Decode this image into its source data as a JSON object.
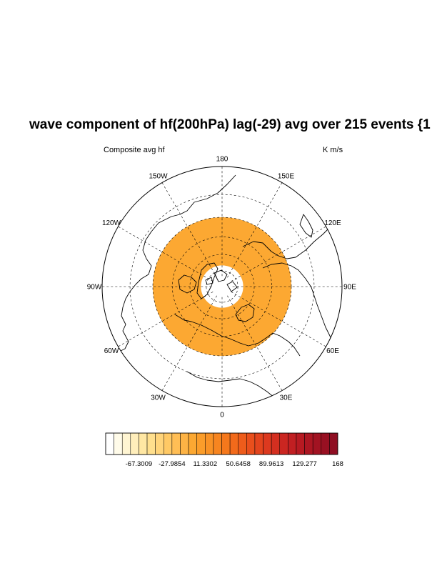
{
  "title": "wave component of hf(200hPa) lag(-29) avg over 215 events {1",
  "left_string": "Composite avg hf",
  "right_string": "K m/s",
  "map": {
    "projection": "north-polar-stereographic",
    "field_color": "#fca832",
    "annulus_lat_range": [
      30,
      70
    ],
    "outer_lat": 0,
    "parallels": [
      15,
      30,
      45,
      60,
      75
    ],
    "meridian_labels": [
      {
        "lon": 180,
        "text": "180"
      },
      {
        "lon": -150,
        "text": "150W"
      },
      {
        "lon": 150,
        "text": "150E"
      },
      {
        "lon": -120,
        "text": "120W"
      },
      {
        "lon": 120,
        "text": "120E"
      },
      {
        "lon": -90,
        "text": "90W"
      },
      {
        "lon": 90,
        "text": "90E"
      },
      {
        "lon": -60,
        "text": "60W"
      },
      {
        "lon": 60,
        "text": "60E"
      },
      {
        "lon": -30,
        "text": "30W"
      },
      {
        "lon": 30,
        "text": "30E"
      },
      {
        "lon": 0,
        "text": "0"
      }
    ]
  },
  "colorbar": {
    "colors": [
      "#ffffff",
      "#fffbe9",
      "#fff5d2",
      "#ffeebb",
      "#ffe7a3",
      "#ffdf8d",
      "#ffd47a",
      "#ffc965",
      "#ffbe55",
      "#fdb345",
      "#fca832",
      "#fb9d2a",
      "#f99225",
      "#f78520",
      "#f5781c",
      "#f26a1b",
      "#ee5c1b",
      "#e94f1c",
      "#e3441d",
      "#dc391f",
      "#d42f20",
      "#cb2621",
      "#c11f22",
      "#b71a22",
      "#ac1622",
      "#a21322",
      "#981022",
      "#8f0e22"
    ],
    "labels": [
      "-67.3009",
      "-27.9854",
      "11.3302",
      "50.6458",
      "89.9613",
      "129.277",
      "168"
    ],
    "label_boxes": [
      4,
      8,
      12,
      16,
      20,
      24,
      28
    ]
  }
}
